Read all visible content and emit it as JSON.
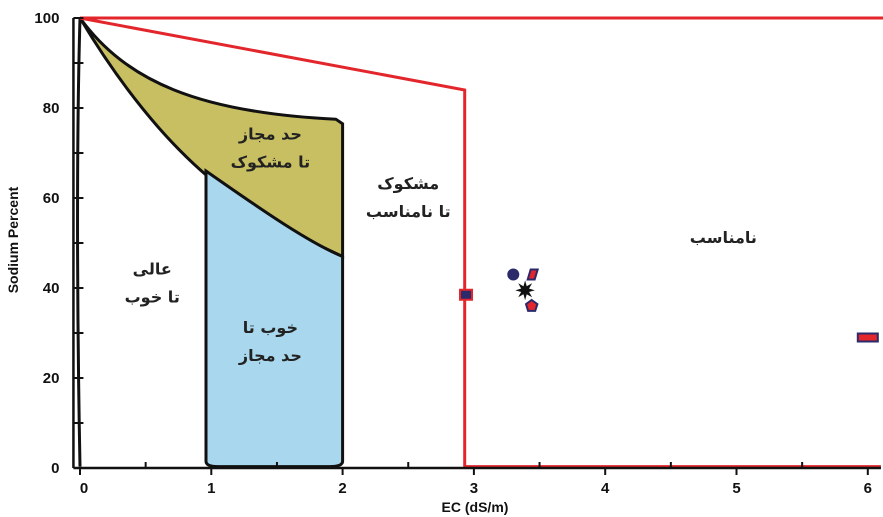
{
  "chart_data": {
    "type": "scatter",
    "xlabel": "EC (dS/m)",
    "ylabel": "Sodium Percent",
    "xlim": [
      -0.05,
      6.1
    ],
    "ylim": [
      0,
      100
    ],
    "x_ticks": [
      0,
      1,
      2,
      3,
      4,
      5,
      6
    ],
    "y_ticks": [
      0,
      20,
      40,
      60,
      80,
      100
    ],
    "grid": false,
    "colors": {
      "axis": "#111111",
      "boundary": "#e3262b",
      "good_permissible": "#a9d8ee",
      "permissible_doubtful": "#c8bf63",
      "marker_dark": "#2b2a6b",
      "marker_red": "#e3262b"
    },
    "regions": [
      {
        "label_lines": [
          "حد مجاز",
          "تا مشکوک"
        ],
        "x": 1.45,
        "y": 73
      },
      {
        "label_lines": [
          "مشکوک",
          "تا نامناسب"
        ],
        "x": 2.5,
        "y": 62
      },
      {
        "label_lines": [
          "عالی",
          "تا خوب"
        ],
        "x": 0.55,
        "y": 43
      },
      {
        "label_lines": [
          "خوب تا",
          "حد مجاز"
        ],
        "x": 1.45,
        "y": 30
      },
      {
        "label_lines": [
          "نامناسب"
        ],
        "x": 4.9,
        "y": 50
      }
    ],
    "points": [
      {
        "x": 2.94,
        "y": 38.5,
        "shape": "square",
        "fill": "#2b2a6b",
        "stroke": "#e3262b"
      },
      {
        "x": 3.3,
        "y": 43,
        "shape": "circle",
        "fill": "#2b2a6b",
        "stroke": "#2b2a6b"
      },
      {
        "x": 3.44,
        "y": 43,
        "shape": "diamond",
        "fill": "#e3262b",
        "stroke": "#2b2a6b"
      },
      {
        "x": 3.39,
        "y": 39.5,
        "shape": "star",
        "fill": "#111111",
        "stroke": "#111111"
      },
      {
        "x": 3.44,
        "y": 36,
        "shape": "pentagon",
        "fill": "#e3262b",
        "stroke": "#2b2a6b"
      },
      {
        "x": 6.0,
        "y": 29,
        "shape": "bar",
        "fill": "#e3262b",
        "stroke": "#2b2a6b"
      }
    ]
  }
}
